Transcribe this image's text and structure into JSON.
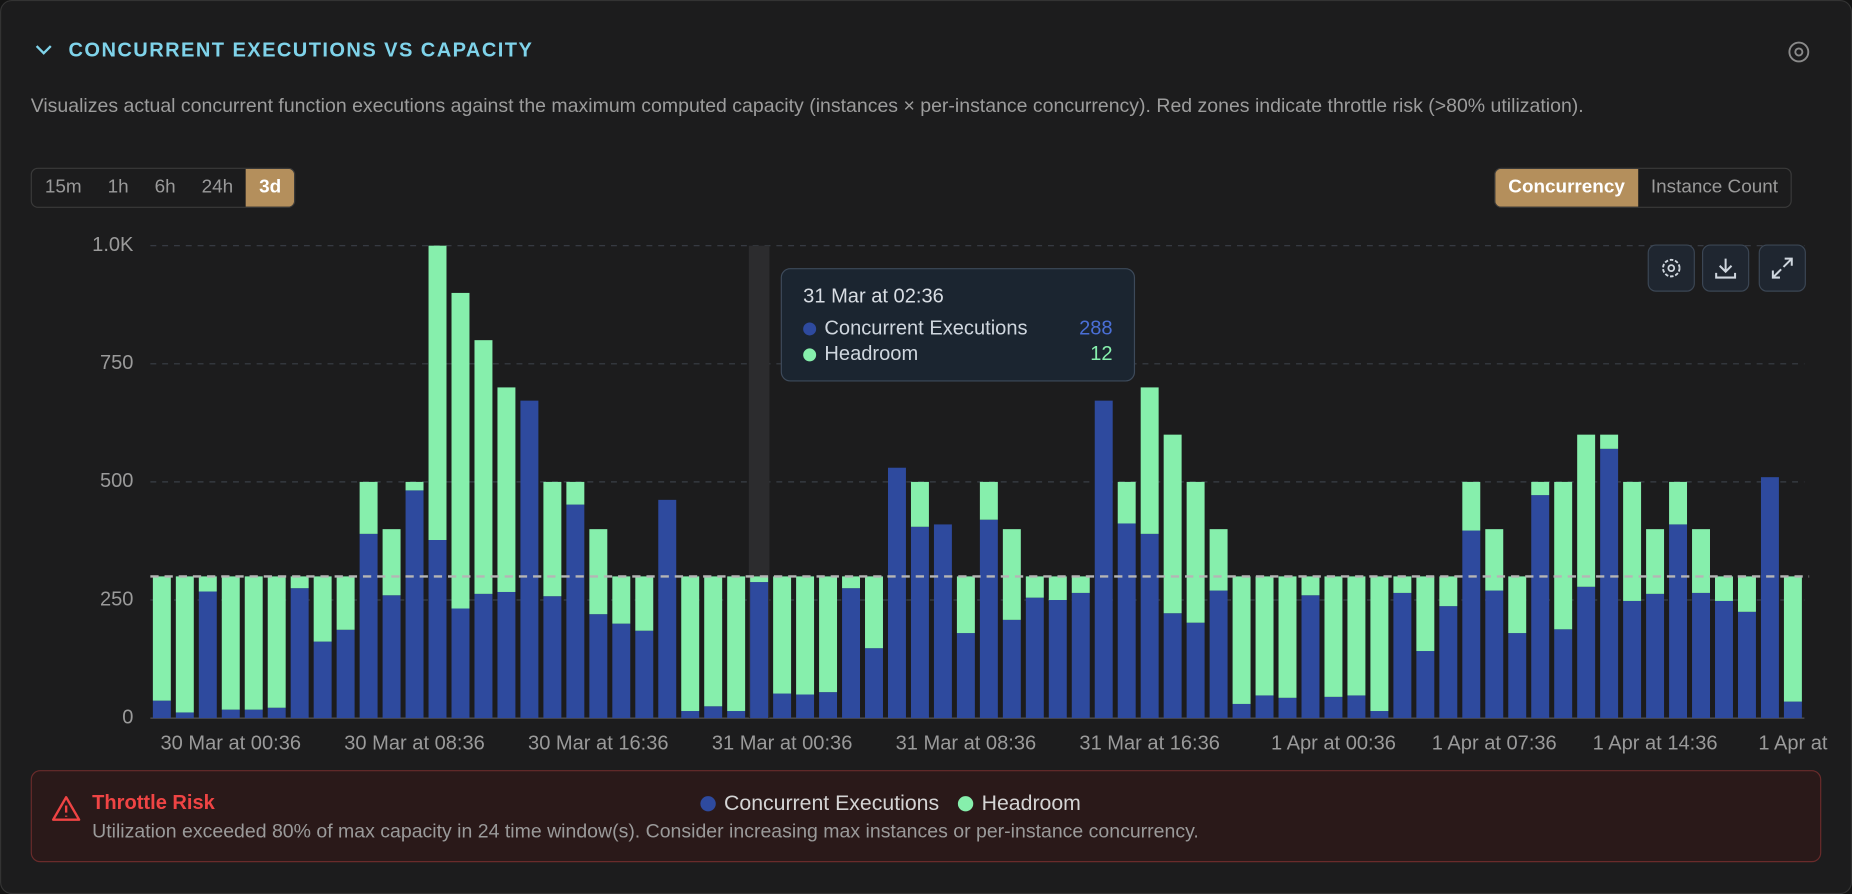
{
  "header": {
    "title": "CONCURRENT EXECUTIONS VS CAPACITY",
    "description": "Visualizes actual concurrent function executions against the maximum computed capacity (instances × per-instance concurrency). Red zones indicate throttle risk (>80% utilization)."
  },
  "time_ranges": [
    {
      "label": "15m"
    },
    {
      "label": "1h"
    },
    {
      "label": "6h"
    },
    {
      "label": "24h"
    },
    {
      "label": "3d",
      "selected": true
    }
  ],
  "view_toggle": [
    {
      "label": "Concurrency",
      "selected": true
    },
    {
      "label": "Instance Count"
    }
  ],
  "tooltip": {
    "title": "31 Mar at 02:36",
    "index": 26
  },
  "alert": {
    "title": "Throttle Risk",
    "message": "Utilization exceeded 80% of max capacity in 24 time window(s). Consider increasing max instances or per-instance concurrency."
  },
  "chart_data": {
    "type": "stacked_bar",
    "categories": [
      null,
      null,
      null,
      "30 Mar at 00:36",
      null,
      null,
      null,
      null,
      null,
      null,
      null,
      "30 Mar at 08:36",
      null,
      null,
      null,
      null,
      null,
      null,
      null,
      "30 Mar at 16:36",
      null,
      null,
      null,
      null,
      null,
      null,
      null,
      "31 Mar at 00:36",
      null,
      null,
      null,
      null,
      null,
      null,
      null,
      "31 Mar at 08:36",
      null,
      null,
      null,
      null,
      null,
      null,
      null,
      "31 Mar at 16:36",
      null,
      null,
      null,
      null,
      null,
      null,
      null,
      "1 Apr at 00:36",
      null,
      null,
      null,
      null,
      null,
      null,
      "1 Apr at 07:36",
      null,
      null,
      null,
      null,
      null,
      null,
      "1 Apr at 14:36",
      null,
      null,
      null,
      null,
      null,
      "1 Apr at"
    ],
    "series": [
      {
        "name": "Concurrent Executions",
        "color": "#2e4a9e",
        "values": [
          37,
          12,
          268,
          18,
          18,
          22,
          275,
          162,
          187,
          390,
          260,
          482,
          377,
          232,
          263,
          267,
          672,
          258,
          452,
          220,
          200,
          185,
          462,
          15,
          25,
          15,
          288,
          52,
          50,
          55,
          275,
          148,
          530,
          405,
          410,
          180,
          420,
          208,
          255,
          250,
          265,
          672,
          412,
          390,
          222,
          202,
          270,
          30,
          48,
          43,
          260,
          45,
          48,
          15,
          265,
          142,
          237,
          397,
          270,
          180,
          472,
          188,
          278,
          570,
          248,
          263,
          410,
          265,
          248,
          225,
          510,
          35
        ]
      },
      {
        "name": "Headroom",
        "color": "#86efac",
        "values": [
          263,
          288,
          32,
          282,
          282,
          278,
          25,
          138,
          113,
          110,
          140,
          18,
          623,
          668,
          537,
          433,
          0,
          242,
          48,
          180,
          100,
          115,
          0,
          285,
          275,
          285,
          12,
          248,
          250,
          245,
          25,
          152,
          0,
          95,
          0,
          120,
          80,
          192,
          45,
          50,
          35,
          0,
          88,
          310,
          378,
          298,
          130,
          270,
          252,
          257,
          40,
          255,
          252,
          285,
          35,
          158,
          63,
          103,
          130,
          120,
          28,
          312,
          322,
          30,
          252,
          137,
          90,
          135,
          52,
          75,
          0,
          265
        ]
      }
    ],
    "ylim": [
      0,
      1000
    ],
    "yticks": [
      0,
      250,
      500,
      750,
      {
        "value": 1000,
        "label": "1.0K"
      }
    ],
    "grid": true,
    "threshold": 300
  }
}
